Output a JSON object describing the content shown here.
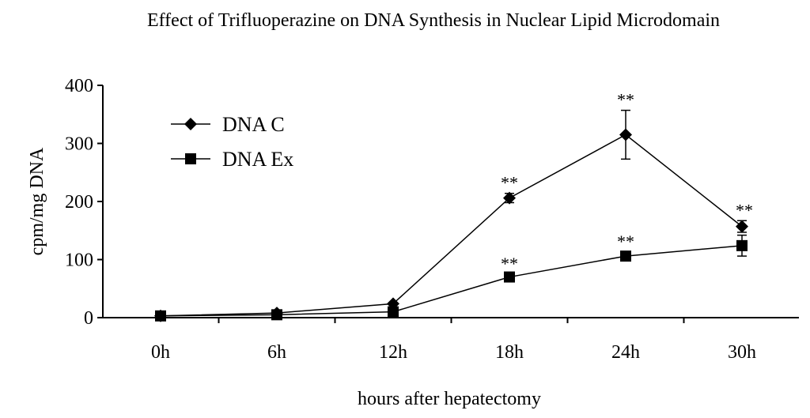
{
  "chart_data": {
    "type": "line",
    "title": "Effect of Trifluoperazine on DNA Synthesis in Nuclear Lipid Microdomain",
    "xlabel": "hours after hepatectomy",
    "ylabel": "cpm/mg DNA",
    "categories": [
      "0h",
      "6h",
      "12h",
      "18h",
      "24h",
      "30h"
    ],
    "ylim": [
      0,
      400
    ],
    "yticks": [
      0,
      100,
      200,
      300,
      400
    ],
    "grid": false,
    "legend_position": "top-left",
    "series": [
      {
        "name": "DNA C",
        "marker": "diamond",
        "color": "#000000",
        "values": [
          3,
          8,
          24,
          206,
          315,
          157
        ],
        "errors": [
          0,
          0,
          0,
          8,
          42,
          10
        ],
        "annotations": [
          "",
          "",
          "",
          "**",
          "**",
          "**"
        ]
      },
      {
        "name": "DNA Ex",
        "marker": "square",
        "color": "#000000",
        "values": [
          3,
          5,
          10,
          70,
          106,
          124
        ],
        "errors": [
          0,
          0,
          0,
          5,
          7,
          18
        ],
        "annotations": [
          "",
          "",
          "",
          "**",
          "**",
          ""
        ]
      }
    ]
  }
}
